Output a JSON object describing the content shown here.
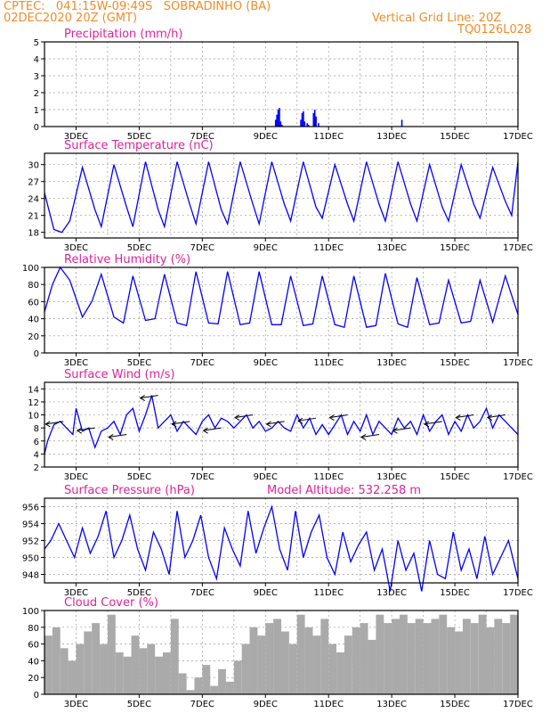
{
  "header": {
    "station": "CPTEC:   041:15W-09:49S   SOBRADINHO (BA)",
    "run": "02DEC2020 20Z (GMT)",
    "grid_note": "Vertical Grid Line: 20Z",
    "model_code": "TQ0126L028"
  },
  "x_ticks": [
    "3DEC",
    "5DEC",
    "7DEC",
    "9DEC",
    "11DEC",
    "13DEC",
    "15DEC",
    "17DEC"
  ],
  "chart_data": [
    {
      "id": "precip",
      "type": "bar",
      "title": "Precipitation (mm/h)",
      "ylim": [
        0,
        5
      ],
      "yticks": [
        0,
        1,
        2,
        3,
        4,
        5
      ],
      "color": "#0000ff",
      "x_unit": "days since 2DEC 20Z",
      "x": [
        7.3,
        7.34,
        7.38,
        7.42,
        7.46,
        7.5,
        8.1,
        8.14,
        8.18,
        8.22,
        8.3,
        8.34,
        8.5,
        8.54,
        8.58,
        8.66,
        11.3
      ],
      "values": [
        0.4,
        0.7,
        1.0,
        1.1,
        0.3,
        0.1,
        0.4,
        0.8,
        0.9,
        0.3,
        0.2,
        0.1,
        0.8,
        1.0,
        0.6,
        0.2,
        0.4
      ]
    },
    {
      "id": "temp",
      "type": "line",
      "title": "Surface Temperature (nC)",
      "ylim": [
        17,
        32
      ],
      "yticks": [
        18,
        21,
        24,
        27,
        30
      ],
      "color": "#0000ff",
      "x": [
        0,
        0.3,
        0.55,
        0.8,
        1.2,
        1.6,
        1.8,
        2.2,
        2.6,
        2.8,
        3.2,
        3.6,
        3.8,
        4.2,
        4.6,
        4.8,
        5.2,
        5.6,
        5.8,
        6.2,
        6.6,
        6.8,
        7.2,
        7.6,
        7.8,
        8.2,
        8.6,
        8.8,
        9.2,
        9.6,
        9.8,
        10.2,
        10.6,
        10.8,
        11.2,
        11.6,
        11.8,
        12.2,
        12.6,
        12.8,
        13.2,
        13.6,
        13.8,
        14.2,
        14.6,
        14.8,
        15.0
      ],
      "values": [
        25,
        18.5,
        18,
        20,
        29.5,
        22,
        19,
        30,
        22.5,
        19,
        30.5,
        22,
        19,
        30.5,
        23,
        19.5,
        30.5,
        22,
        19.5,
        30.5,
        23,
        19.5,
        30.5,
        23,
        20,
        30.5,
        22.5,
        20.5,
        30,
        23,
        20,
        30.5,
        23,
        20,
        30.5,
        23,
        20,
        30,
        22.5,
        20,
        30,
        23,
        20.5,
        29.5,
        23.5,
        21,
        30.5
      ]
    },
    {
      "id": "rh",
      "type": "line",
      "title": "Relative Humidity (%)",
      "ylim": [
        0,
        100
      ],
      "yticks": [
        0,
        20,
        40,
        60,
        80,
        100
      ],
      "color": "#0000ff",
      "x": [
        0,
        0.25,
        0.5,
        0.8,
        1.2,
        1.5,
        1.8,
        2.2,
        2.5,
        2.8,
        3.2,
        3.5,
        3.8,
        4.2,
        4.5,
        4.8,
        5.2,
        5.5,
        5.8,
        6.2,
        6.5,
        6.8,
        7.2,
        7.5,
        7.8,
        8.2,
        8.5,
        8.8,
        9.2,
        9.5,
        9.8,
        10.2,
        10.5,
        10.8,
        11.2,
        11.5,
        11.8,
        12.2,
        12.5,
        12.8,
        13.2,
        13.5,
        13.8,
        14.2,
        14.6,
        15.0
      ],
      "values": [
        48,
        80,
        100,
        85,
        42,
        60,
        92,
        42,
        35,
        90,
        38,
        40,
        92,
        35,
        32,
        95,
        35,
        34,
        95,
        33,
        35,
        95,
        33,
        33,
        90,
        32,
        34,
        90,
        33,
        30,
        90,
        30,
        32,
        93,
        34,
        30,
        88,
        33,
        35,
        85,
        35,
        37,
        85,
        36,
        90,
        45
      ]
    },
    {
      "id": "wind",
      "type": "line",
      "title": "Surface Wind (m/s)",
      "ylim": [
        2,
        15
      ],
      "yticks": [
        2,
        4,
        6,
        8,
        10,
        12,
        14
      ],
      "color": "#0000ff",
      "x": [
        0,
        0.1,
        0.3,
        0.5,
        0.7,
        0.9,
        1.0,
        1.2,
        1.4,
        1.6,
        1.8,
        2.0,
        2.2,
        2.4,
        2.6,
        2.8,
        3.0,
        3.2,
        3.4,
        3.6,
        3.8,
        4.0,
        4.2,
        4.4,
        4.6,
        4.8,
        5.0,
        5.2,
        5.4,
        5.6,
        5.8,
        6.0,
        6.2,
        6.4,
        6.6,
        6.8,
        7.0,
        7.2,
        7.4,
        7.6,
        7.8,
        8.0,
        8.2,
        8.4,
        8.6,
        8.8,
        9.0,
        9.2,
        9.4,
        9.6,
        9.8,
        10.0,
        10.2,
        10.4,
        10.6,
        10.8,
        11.0,
        11.2,
        11.4,
        11.6,
        11.8,
        12.0,
        12.2,
        12.4,
        12.6,
        12.8,
        13.0,
        13.2,
        13.4,
        13.6,
        13.8,
        14.0,
        14.2,
        14.4,
        14.6,
        14.8,
        15.0
      ],
      "values": [
        4,
        6,
        8.5,
        9,
        8,
        7,
        11,
        7.5,
        8,
        5,
        7.5,
        8,
        9,
        7,
        10,
        11,
        7.5,
        10,
        13,
        8,
        9,
        10,
        7.5,
        9,
        8,
        7,
        9,
        10,
        8,
        9.5,
        9,
        8,
        9,
        10,
        8,
        9,
        7.5,
        8,
        9,
        8,
        7.5,
        10,
        8,
        9.5,
        7,
        8.5,
        7,
        8.5,
        10,
        7,
        9,
        7.5,
        10,
        7,
        9,
        8,
        7,
        9.5,
        8,
        9,
        7,
        10,
        7.5,
        9,
        10,
        7,
        9,
        7.5,
        10,
        8,
        9,
        11,
        8,
        10,
        9,
        8,
        7
      ]
    },
    {
      "id": "pressure",
      "type": "line",
      "title": "Surface Pressure (hPa)",
      "annotation": "Model Altitude: 532.258 m",
      "ylim": [
        947,
        957
      ],
      "yticks": [
        948,
        950,
        952,
        954,
        956
      ],
      "color": "#0000ff",
      "x": [
        0,
        0.2,
        0.45,
        0.7,
        0.95,
        1.2,
        1.45,
        1.7,
        1.95,
        2.2,
        2.45,
        2.7,
        2.95,
        3.2,
        3.45,
        3.7,
        3.95,
        4.2,
        4.45,
        4.7,
        4.95,
        5.2,
        5.45,
        5.7,
        5.95,
        6.2,
        6.45,
        6.7,
        6.95,
        7.2,
        7.45,
        7.7,
        7.95,
        8.2,
        8.45,
        8.7,
        8.95,
        9.2,
        9.45,
        9.7,
        9.95,
        10.2,
        10.45,
        10.7,
        10.95,
        11.2,
        11.45,
        11.7,
        11.95,
        12.2,
        12.45,
        12.7,
        12.95,
        13.2,
        13.45,
        13.7,
        13.95,
        14.2,
        14.45,
        14.7,
        15.0
      ],
      "values": [
        951,
        952,
        954,
        952,
        950,
        953.5,
        950.5,
        952.5,
        955.5,
        950,
        952,
        955,
        951,
        948.5,
        953,
        951,
        948,
        955.5,
        950,
        952,
        955,
        950,
        947.5,
        953.5,
        951,
        949,
        955.5,
        950.5,
        953.5,
        956,
        951,
        948.5,
        955.5,
        950,
        953,
        955,
        950,
        948,
        953,
        949.5,
        951.5,
        953,
        948.5,
        951,
        946,
        952,
        948.5,
        950.5,
        946,
        952,
        948,
        947.5,
        953,
        948.5,
        951,
        947.5,
        952.5,
        948,
        950,
        952,
        947.5
      ]
    },
    {
      "id": "cloud",
      "type": "bar",
      "title": "Cloud Cover (%)",
      "ylim": [
        0,
        100
      ],
      "yticks": [
        0,
        20,
        40,
        60,
        80,
        100
      ],
      "color": "#aaaaaa",
      "x": [
        0,
        0.25,
        0.5,
        0.75,
        1.0,
        1.25,
        1.5,
        1.75,
        2.0,
        2.25,
        2.5,
        2.75,
        3.0,
        3.25,
        3.5,
        3.75,
        4.0,
        4.25,
        4.5,
        4.75,
        5.0,
        5.25,
        5.5,
        5.75,
        6.0,
        6.25,
        6.5,
        6.75,
        7.0,
        7.25,
        7.5,
        7.75,
        8.0,
        8.25,
        8.5,
        8.75,
        9.0,
        9.25,
        9.5,
        9.75,
        10.0,
        10.25,
        10.5,
        10.75,
        11.0,
        11.25,
        11.5,
        11.75,
        12.0,
        12.25,
        12.5,
        12.75,
        13.0,
        13.25,
        13.5,
        13.75,
        14.0,
        14.25,
        14.5,
        14.75
      ],
      "values": [
        70,
        80,
        55,
        40,
        60,
        75,
        85,
        60,
        95,
        50,
        45,
        70,
        55,
        60,
        45,
        50,
        90,
        25,
        5,
        20,
        35,
        10,
        30,
        15,
        40,
        60,
        80,
        70,
        85,
        90,
        75,
        60,
        95,
        80,
        70,
        90,
        60,
        50,
        70,
        80,
        85,
        65,
        95,
        85,
        90,
        95,
        85,
        90,
        85,
        90,
        95,
        80,
        75,
        90,
        85,
        95,
        80,
        90,
        85,
        95
      ]
    }
  ]
}
